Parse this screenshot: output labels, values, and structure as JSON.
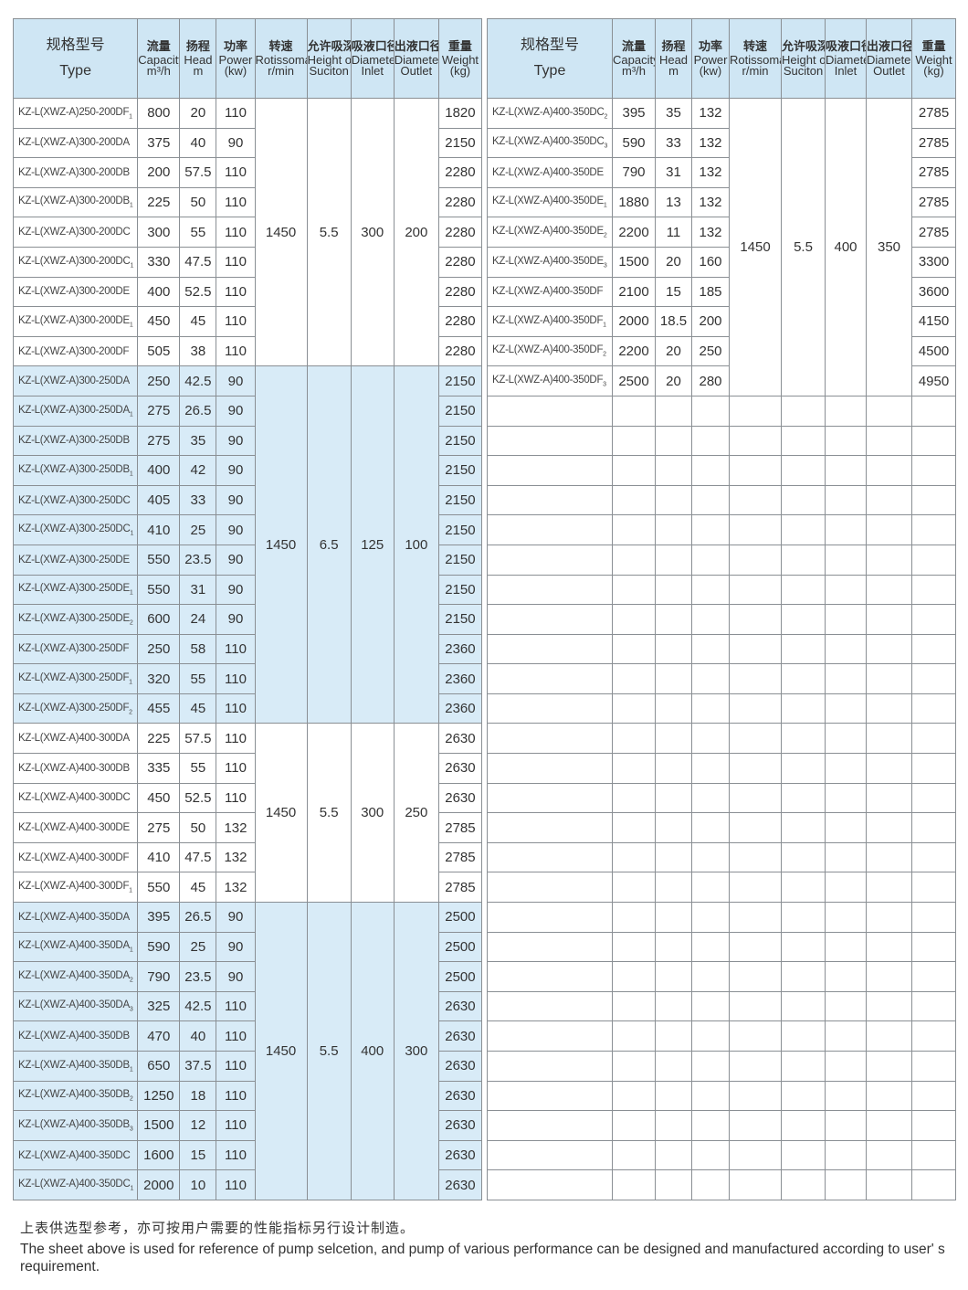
{
  "headers": [
    {
      "cn": "规格型号",
      "en": "Type",
      "unit": ""
    },
    {
      "cn": "流量",
      "en": "Capacity",
      "unit": "m³/h"
    },
    {
      "cn": "扬程",
      "en": "Head",
      "unit": "m"
    },
    {
      "cn": "功率",
      "en": "Power",
      "unit": "(kw)"
    },
    {
      "cn": "转速",
      "en": "Rotissomat Speed",
      "unit": "r/min"
    },
    {
      "cn": "允许吸深",
      "en": "Height of",
      "unit": "Suciton"
    },
    {
      "cn": "吸液口径",
      "en": "Diameter of",
      "unit": "Inlet"
    },
    {
      "cn": "出液口径",
      "en": "Diameter of",
      "unit": "Outlet"
    },
    {
      "cn": "重量",
      "en": "Weight",
      "unit": "(kg)"
    }
  ],
  "left_table": {
    "groups": [
      {
        "speed": "1450",
        "height": "5.5",
        "inlet": "300",
        "outlet": "200",
        "blue": false,
        "rows": [
          [
            "KZ-L(XWZ-A)250-200DF",
            "1",
            "800",
            "20",
            "110",
            "1820"
          ],
          [
            "KZ-L(XWZ-A)300-200DA",
            "",
            "375",
            "40",
            "90",
            "2150"
          ],
          [
            "KZ-L(XWZ-A)300-200DB",
            "",
            "200",
            "57.5",
            "110",
            "2280"
          ],
          [
            "KZ-L(XWZ-A)300-200DB",
            "1",
            "225",
            "50",
            "110",
            "2280"
          ],
          [
            "KZ-L(XWZ-A)300-200DC",
            "",
            "300",
            "55",
            "110",
            "2280"
          ],
          [
            "KZ-L(XWZ-A)300-200DC",
            "1",
            "330",
            "47.5",
            "110",
            "2280"
          ],
          [
            "KZ-L(XWZ-A)300-200DE",
            "",
            "400",
            "52.5",
            "110",
            "2280"
          ],
          [
            "KZ-L(XWZ-A)300-200DE",
            "1",
            "450",
            "45",
            "110",
            "2280"
          ],
          [
            "KZ-L(XWZ-A)300-200DF",
            "",
            "505",
            "38",
            "110",
            "2280"
          ]
        ]
      },
      {
        "speed": "1450",
        "height": "6.5",
        "inlet": "125",
        "outlet": "100",
        "blue": true,
        "rows": [
          [
            "KZ-L(XWZ-A)300-250DA",
            "",
            "250",
            "42.5",
            "90",
            "2150"
          ],
          [
            "KZ-L(XWZ-A)300-250DA",
            "1",
            "275",
            "26.5",
            "90",
            "2150"
          ],
          [
            "KZ-L(XWZ-A)300-250DB",
            "",
            "275",
            "35",
            "90",
            "2150"
          ],
          [
            "KZ-L(XWZ-A)300-250DB",
            "1",
            "400",
            "42",
            "90",
            "2150"
          ],
          [
            "KZ-L(XWZ-A)300-250DC",
            "",
            "405",
            "33",
            "90",
            "2150"
          ],
          [
            "KZ-L(XWZ-A)300-250DC",
            "1",
            "410",
            "25",
            "90",
            "2150"
          ],
          [
            "KZ-L(XWZ-A)300-250DE",
            "",
            "550",
            "23.5",
            "90",
            "2150"
          ],
          [
            "KZ-L(XWZ-A)300-250DE",
            "1",
            "550",
            "31",
            "90",
            "2150"
          ],
          [
            "KZ-L(XWZ-A)300-250DE",
            "2",
            "600",
            "24",
            "90",
            "2150"
          ],
          [
            "KZ-L(XWZ-A)300-250DF",
            "",
            "250",
            "58",
            "110",
            "2360"
          ],
          [
            "KZ-L(XWZ-A)300-250DF",
            "1",
            "320",
            "55",
            "110",
            "2360"
          ],
          [
            "KZ-L(XWZ-A)300-250DF",
            "2",
            "455",
            "45",
            "110",
            "2360"
          ]
        ]
      },
      {
        "speed": "1450",
        "height": "5.5",
        "inlet": "300",
        "outlet": "250",
        "blue": false,
        "rows": [
          [
            "KZ-L(XWZ-A)400-300DA",
            "",
            "225",
            "57.5",
            "110",
            "2630"
          ],
          [
            "KZ-L(XWZ-A)400-300DB",
            "",
            "335",
            "55",
            "110",
            "2630"
          ],
          [
            "KZ-L(XWZ-A)400-300DC",
            "",
            "450",
            "52.5",
            "110",
            "2630"
          ],
          [
            "KZ-L(XWZ-A)400-300DE",
            "",
            "275",
            "50",
            "132",
            "2785"
          ],
          [
            "KZ-L(XWZ-A)400-300DF",
            "",
            "410",
            "47.5",
            "132",
            "2785"
          ],
          [
            "KZ-L(XWZ-A)400-300DF",
            "1",
            "550",
            "45",
            "132",
            "2785"
          ]
        ]
      },
      {
        "speed": "1450",
        "height": "5.5",
        "inlet": "400",
        "outlet": "300",
        "blue": true,
        "rows": [
          [
            "KZ-L(XWZ-A)400-350DA",
            "",
            "395",
            "26.5",
            "90",
            "2500"
          ],
          [
            "KZ-L(XWZ-A)400-350DA",
            "1",
            "590",
            "25",
            "90",
            "2500"
          ],
          [
            "KZ-L(XWZ-A)400-350DA",
            "2",
            "790",
            "23.5",
            "90",
            "2500"
          ],
          [
            "KZ-L(XWZ-A)400-350DA",
            "3",
            "325",
            "42.5",
            "110",
            "2630"
          ],
          [
            "KZ-L(XWZ-A)400-350DB",
            "",
            "470",
            "40",
            "110",
            "2630"
          ],
          [
            "KZ-L(XWZ-A)400-350DB",
            "1",
            "650",
            "37.5",
            "110",
            "2630"
          ],
          [
            "KZ-L(XWZ-A)400-350DB",
            "2",
            "1250",
            "18",
            "110",
            "2630"
          ],
          [
            "KZ-L(XWZ-A)400-350DB",
            "3",
            "1500",
            "12",
            "110",
            "2630"
          ],
          [
            "KZ-L(XWZ-A)400-350DC",
            "",
            "1600",
            "15",
            "110",
            "2630"
          ],
          [
            "KZ-L(XWZ-A)400-350DC",
            "1",
            "2000",
            "10",
            "110",
            "2630"
          ]
        ]
      }
    ]
  },
  "right_table": {
    "groups": [
      {
        "speed": "1450",
        "height": "5.5",
        "inlet": "400",
        "outlet": "350",
        "blue": false,
        "rows": [
          [
            "KZ-L(XWZ-A)400-350DC",
            "2",
            "395",
            "35",
            "132",
            "2785"
          ],
          [
            "KZ-L(XWZ-A)400-350DC",
            "3",
            "590",
            "33",
            "132",
            "2785"
          ],
          [
            "KZ-L(XWZ-A)400-350DE",
            "",
            "790",
            "31",
            "132",
            "2785"
          ],
          [
            "KZ-L(XWZ-A)400-350DE",
            "1",
            "1880",
            "13",
            "132",
            "2785"
          ],
          [
            "KZ-L(XWZ-A)400-350DE",
            "2",
            "2200",
            "11",
            "132",
            "2785"
          ],
          [
            "KZ-L(XWZ-A)400-350DE",
            "3",
            "1500",
            "20",
            "160",
            "3300"
          ],
          [
            "KZ-L(XWZ-A)400-350DF",
            "",
            "2100",
            "15",
            "185",
            "3600"
          ],
          [
            "KZ-L(XWZ-A)400-350DF",
            "1",
            "2000",
            "18.5",
            "200",
            "4150"
          ],
          [
            "KZ-L(XWZ-A)400-350DF",
            "2",
            "2200",
            "20",
            "250",
            "4500"
          ],
          [
            "KZ-L(XWZ-A)400-350DF",
            "3",
            "2500",
            "20",
            "280",
            "4950"
          ]
        ]
      }
    ],
    "empty_rows": 27
  },
  "footer": {
    "cn": "上表供选型参考，亦可按用户需要的性能指标另行设计制造。",
    "en": "The sheet above is used for reference of pump selcetion, and pump of various performance can be designed and manufactured according to user' s requirement."
  },
  "colors": {
    "header_bg": "#cfe6f4",
    "group_blue": "#d8ebf7",
    "border": "#8a8f94"
  }
}
